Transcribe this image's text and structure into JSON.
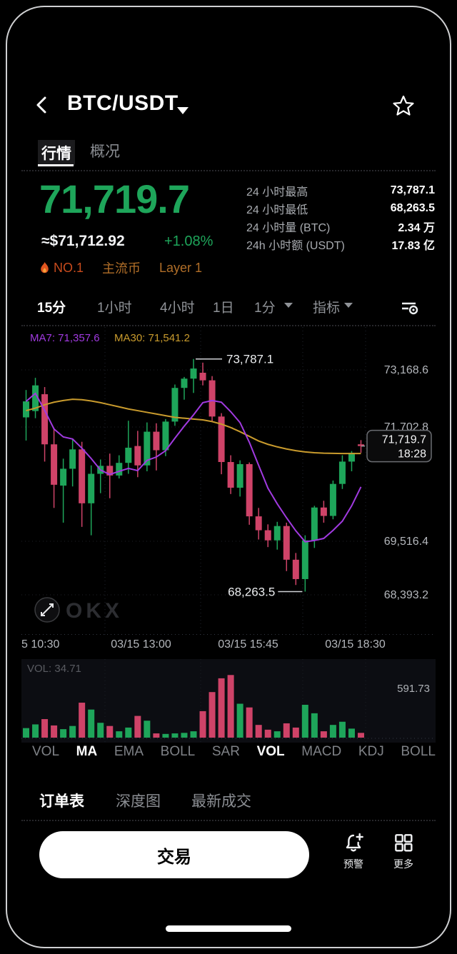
{
  "header": {
    "title": "BTC/USDT"
  },
  "page_tabs": [
    {
      "label": "行情"
    },
    {
      "label": "概况"
    }
  ],
  "price": {
    "last": "71,719.7",
    "approx_usd": "≈$71,712.92",
    "change_pct": "+1.08%"
  },
  "tags": [
    {
      "label": "NO.1",
      "icon": "flame-icon",
      "color": "#c84b1d"
    },
    {
      "label": "主流币",
      "color": "#b06e28"
    },
    {
      "label": "Layer 1",
      "color": "#b06e28"
    }
  ],
  "stats": [
    {
      "label": "24 小时最高",
      "value": "73,787.1"
    },
    {
      "label": "24 小时最低",
      "value": "68,263.5"
    },
    {
      "label": "24 小时量 (BTC)",
      "value": "2.34 万"
    },
    {
      "label": "24h 小时额 (USDT)",
      "value": "17.83 亿"
    }
  ],
  "timeframe_bar": {
    "items": [
      {
        "label": "15分"
      },
      {
        "label": "1小时"
      },
      {
        "label": "4小时"
      },
      {
        "label": "1日"
      },
      {
        "label": "1分"
      },
      {
        "label": "指标"
      }
    ]
  },
  "chart_data": {
    "type": "candlestick",
    "up_color": "#1ea55a",
    "down_color": "#cf4368",
    "ma7": {
      "label": "MA7: 71,357.6",
      "color": "#a13ae0"
    },
    "ma30": {
      "label": "MA30: 71,541.2",
      "color": "#c99b2d"
    },
    "price_min": 67220,
    "price_max": 74545,
    "y_axis_labels": [
      "73,168.6",
      "71,702.8",
      "69,516.4",
      "68,393.2"
    ],
    "x_axis_labels": [
      "5 10:30",
      "03/15 13:00",
      "03/15 15:45",
      "03/15 18:30"
    ],
    "high_annotation": "73,787.1",
    "low_annotation": "68,263.5",
    "last_price": "71,719.7",
    "last_time": "18:28",
    "watermark": "OKX",
    "candles": [
      [
        72400,
        73050,
        71850,
        72780
      ],
      [
        72550,
        73340,
        72380,
        73160
      ],
      [
        72950,
        73120,
        71350,
        71760
      ],
      [
        71760,
        72150,
        70250,
        70800
      ],
      [
        70780,
        71420,
        69900,
        71180
      ],
      [
        71180,
        71900,
        70760,
        71640
      ],
      [
        71640,
        71820,
        69800,
        70360
      ],
      [
        70360,
        71260,
        69600,
        71060
      ],
      [
        71060,
        71400,
        70600,
        71250
      ],
      [
        71250,
        71540,
        70480,
        71020
      ],
      [
        71020,
        71500,
        70950,
        71320
      ],
      [
        71320,
        72320,
        71060,
        71680
      ],
      [
        71720,
        72080,
        70980,
        71260
      ],
      [
        71260,
        72280,
        71120,
        72060
      ],
      [
        72060,
        72260,
        71140,
        71620
      ],
      [
        71620,
        72360,
        71480,
        72300
      ],
      [
        72300,
        73180,
        72200,
        73100
      ],
      [
        73100,
        73360,
        72820,
        73320
      ],
      [
        73320,
        73787.1,
        72980,
        73560
      ],
      [
        73460,
        73700,
        73160,
        73280
      ],
      [
        73280,
        73380,
        72300,
        72420
      ],
      [
        72420,
        72500,
        71050,
        71340
      ],
      [
        71340,
        71500,
        70580,
        70730
      ],
      [
        70730,
        71380,
        70520,
        71290
      ],
      [
        71290,
        71330,
        69850,
        70050
      ],
      [
        70050,
        70250,
        69500,
        69720
      ],
      [
        69720,
        69860,
        69320,
        69480
      ],
      [
        69480,
        69920,
        69260,
        69820
      ],
      [
        69820,
        69900,
        68750,
        69020
      ],
      [
        69020,
        69180,
        68420,
        68560
      ],
      [
        68560,
        69600,
        68263.5,
        69480
      ],
      [
        69480,
        70300,
        69300,
        70260
      ],
      [
        70260,
        70420,
        69900,
        70060
      ],
      [
        70060,
        70900,
        69980,
        70820
      ],
      [
        70820,
        71500,
        70700,
        71350
      ],
      [
        71350,
        71600,
        71120,
        71560
      ],
      [
        71760,
        71860,
        71560,
        71719.7
      ]
    ],
    "volumes": [
      90,
      125,
      175,
      115,
      80,
      110,
      330,
      265,
      140,
      110,
      60,
      95,
      205,
      160,
      40,
      35,
      40,
      45,
      60,
      250,
      430,
      560,
      591,
      320,
      285,
      120,
      75,
      60,
      135,
      95,
      310,
      230,
      60,
      120,
      150,
      85,
      45
    ],
    "ma30_values": [
      72560,
      72620,
      72700,
      72760,
      72800,
      72830,
      72820,
      72790,
      72750,
      72700,
      72650,
      72600,
      72560,
      72520,
      72480,
      72440,
      72400,
      72380,
      72360,
      72340,
      72300,
      72240,
      72160,
      72060,
      71950,
      71840,
      71760,
      71700,
      71650,
      71610,
      71580,
      71560,
      71550,
      71545,
      71542,
      71541,
      71541.2
    ],
    "volume_label": "VOL: 34.71",
    "volume_scale": "591.73"
  },
  "indicator_tabs": [
    {
      "label": "VOL"
    },
    {
      "label": "MA",
      "active": true
    },
    {
      "label": "EMA"
    },
    {
      "label": "BOLL"
    },
    {
      "label": "SAR"
    },
    {
      "label": "VOL",
      "active": true
    },
    {
      "label": "MACD"
    },
    {
      "label": "KDJ"
    },
    {
      "label": "BOLL"
    }
  ],
  "bottom_tabs": [
    {
      "label": "订单表"
    },
    {
      "label": "深度图"
    },
    {
      "label": "最新成交"
    }
  ],
  "actions": {
    "trade_button": "交易",
    "alert_label": "预警",
    "more_label": "更多"
  }
}
